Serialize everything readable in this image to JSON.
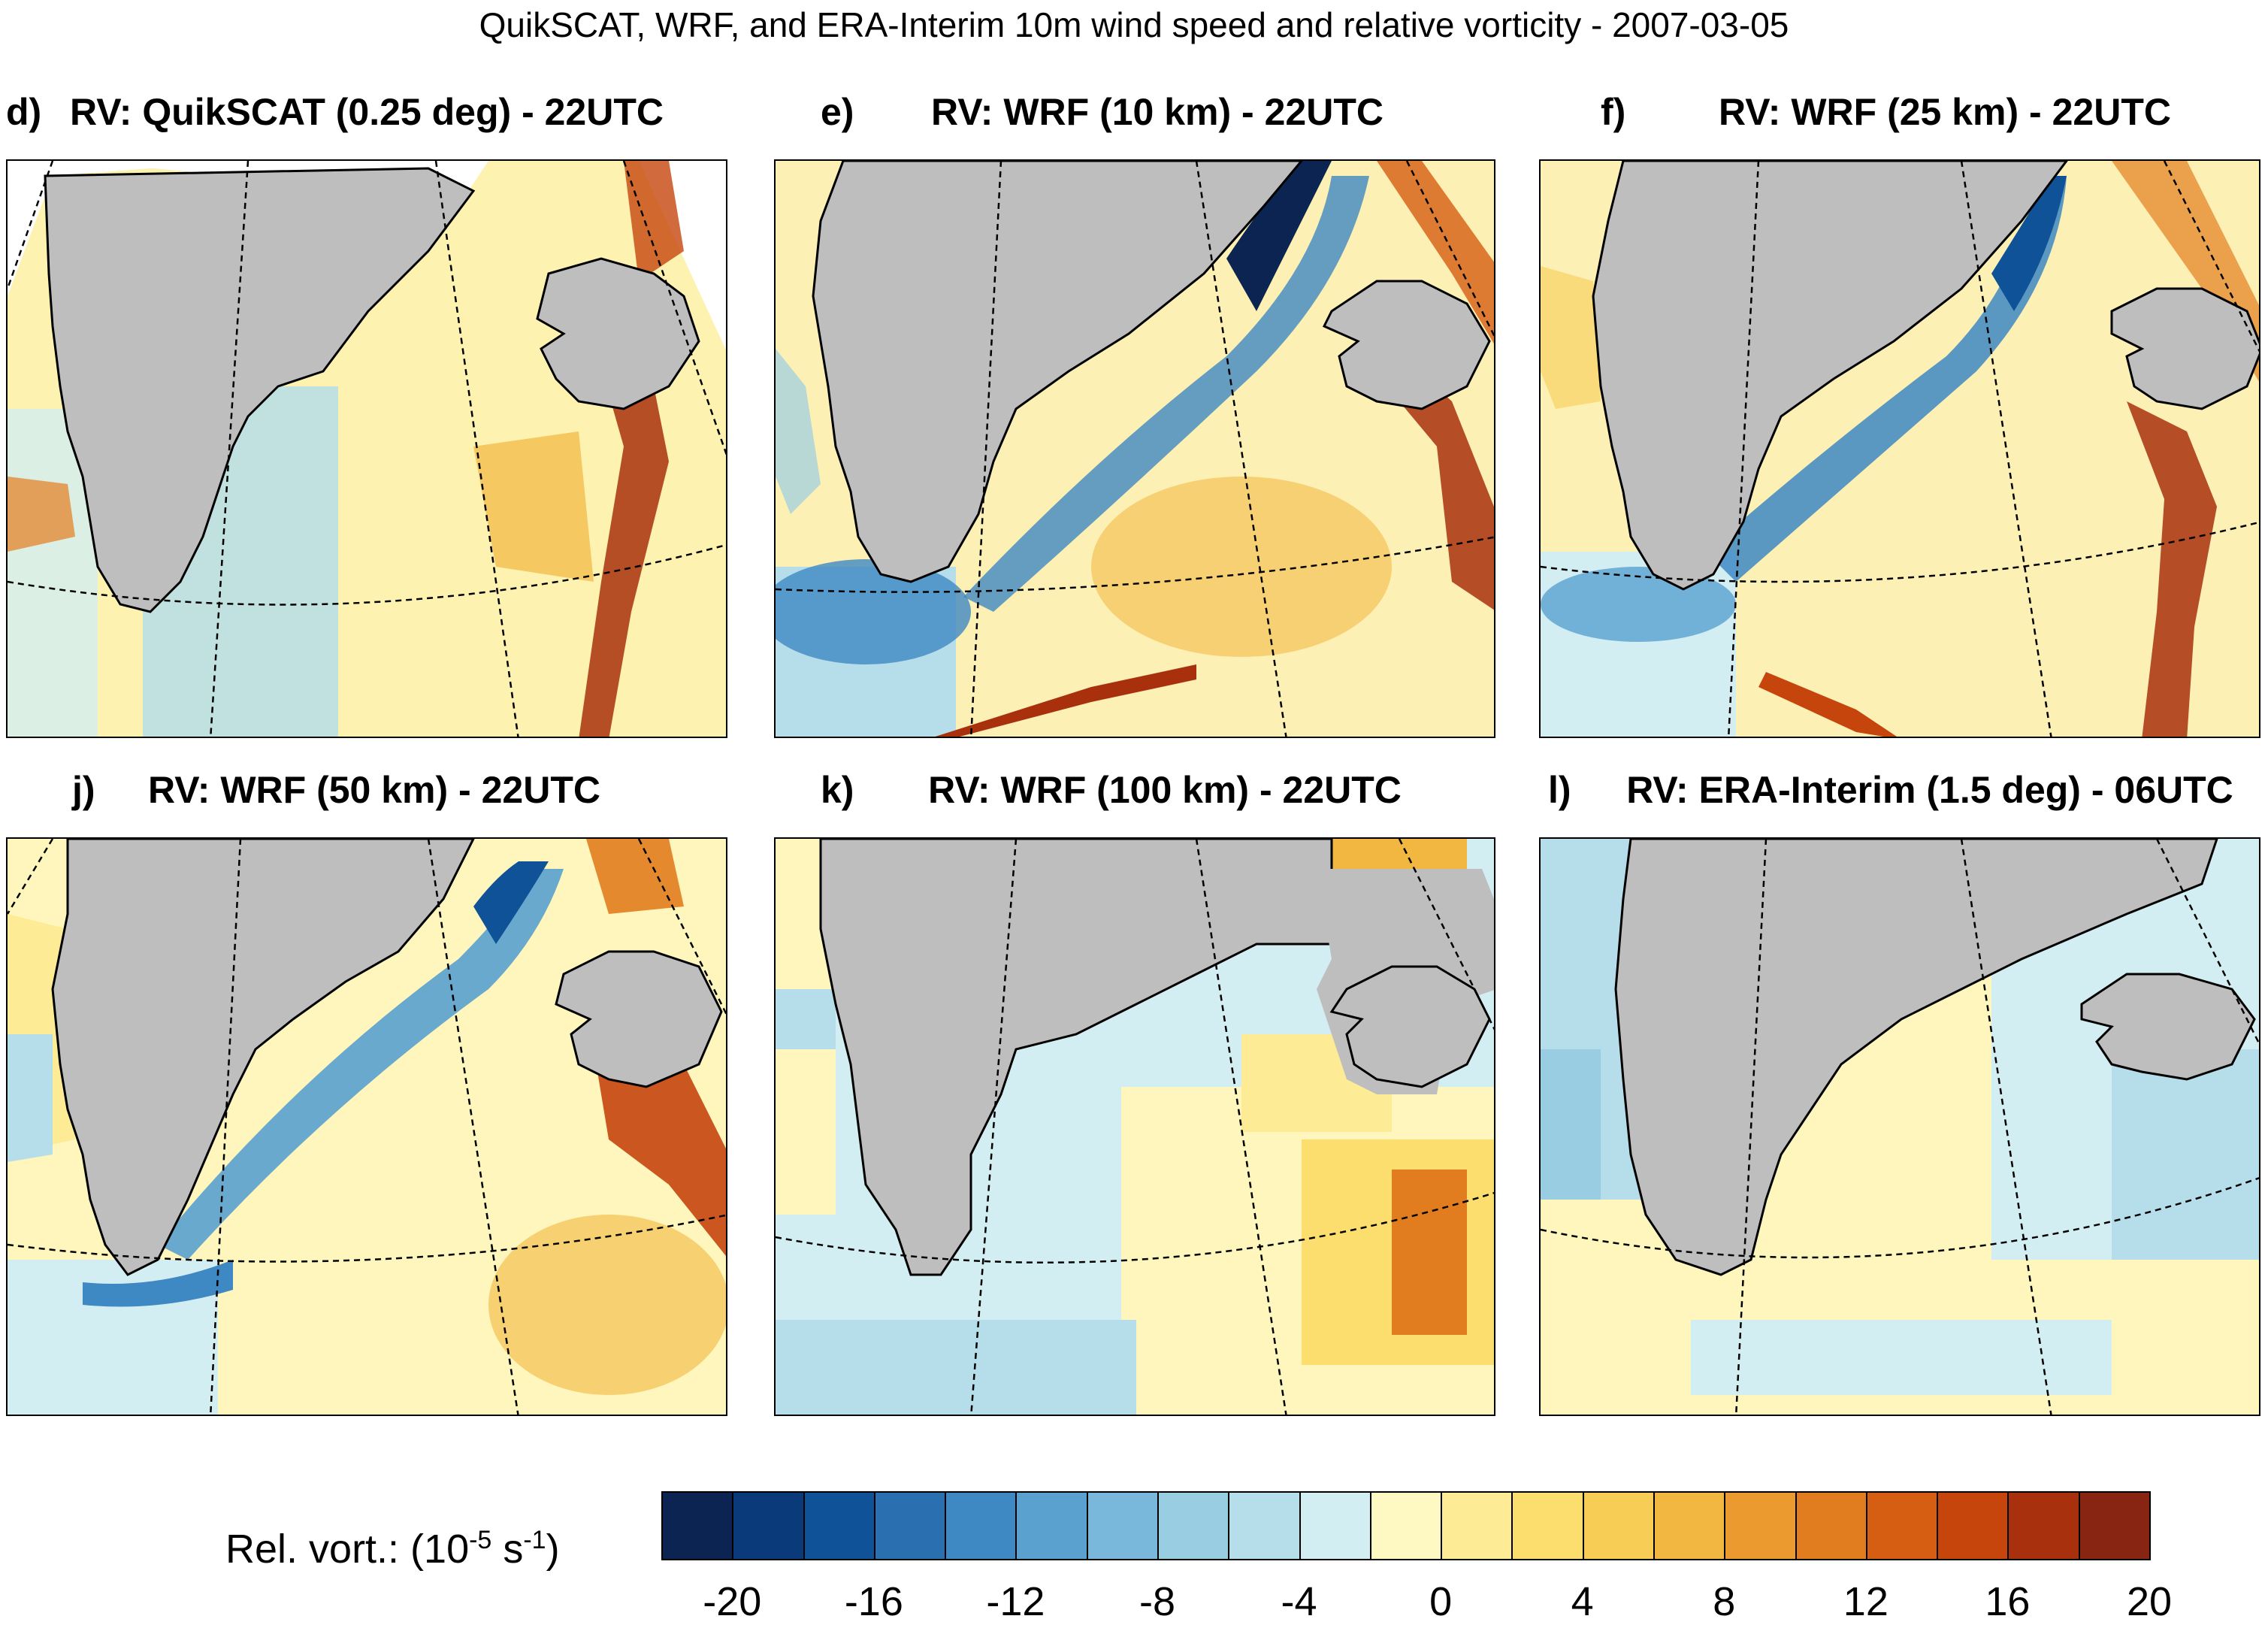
{
  "title": "QuikSCAT, WRF, and ERA-Interim 10m wind speed and relative vorticity - 2007-03-05",
  "panels": [
    {
      "label": "d)",
      "title": "RV: QuikSCAT (0.25 deg) - 22UTC"
    },
    {
      "label": "e)",
      "title": "RV: WRF (10 km) - 22UTC"
    },
    {
      "label": "f)",
      "title": "RV: WRF (25 km) - 22UTC"
    },
    {
      "label": "j)",
      "title": "RV: WRF (50 km) - 22UTC"
    },
    {
      "label": "k)",
      "title": "RV: WRF (100 km) - 22UTC"
    },
    {
      "label": "l)",
      "title": "RV: ERA-Interim (1.5 deg) - 06UTC"
    }
  ],
  "colorbar": {
    "label_main": "Rel. vort.: (10",
    "label_exp1": "-5",
    "label_mid": " s",
    "label_exp2": "-1",
    "label_end": ")",
    "ticks": [
      "-20",
      "-16",
      "-12",
      "-8",
      "-4",
      "0",
      "4",
      "8",
      "12",
      "16",
      "20"
    ],
    "colors": [
      "#0c2452",
      "#0a3a7a",
      "#0f5298",
      "#2a6fb0",
      "#3e88c3",
      "#5aa1cf",
      "#79b8da",
      "#98cde2",
      "#b6deea",
      "#d3eef3",
      "#fef9c2",
      "#fdec95",
      "#fcde6f",
      "#f8cd55",
      "#f2b740",
      "#ea9a2e",
      "#e27d1f",
      "#d65e13",
      "#c6450d",
      "#a8300d",
      "#872512"
    ]
  },
  "colors": {
    "land": "#bebebe",
    "ocean_base": "#fef9c8"
  }
}
